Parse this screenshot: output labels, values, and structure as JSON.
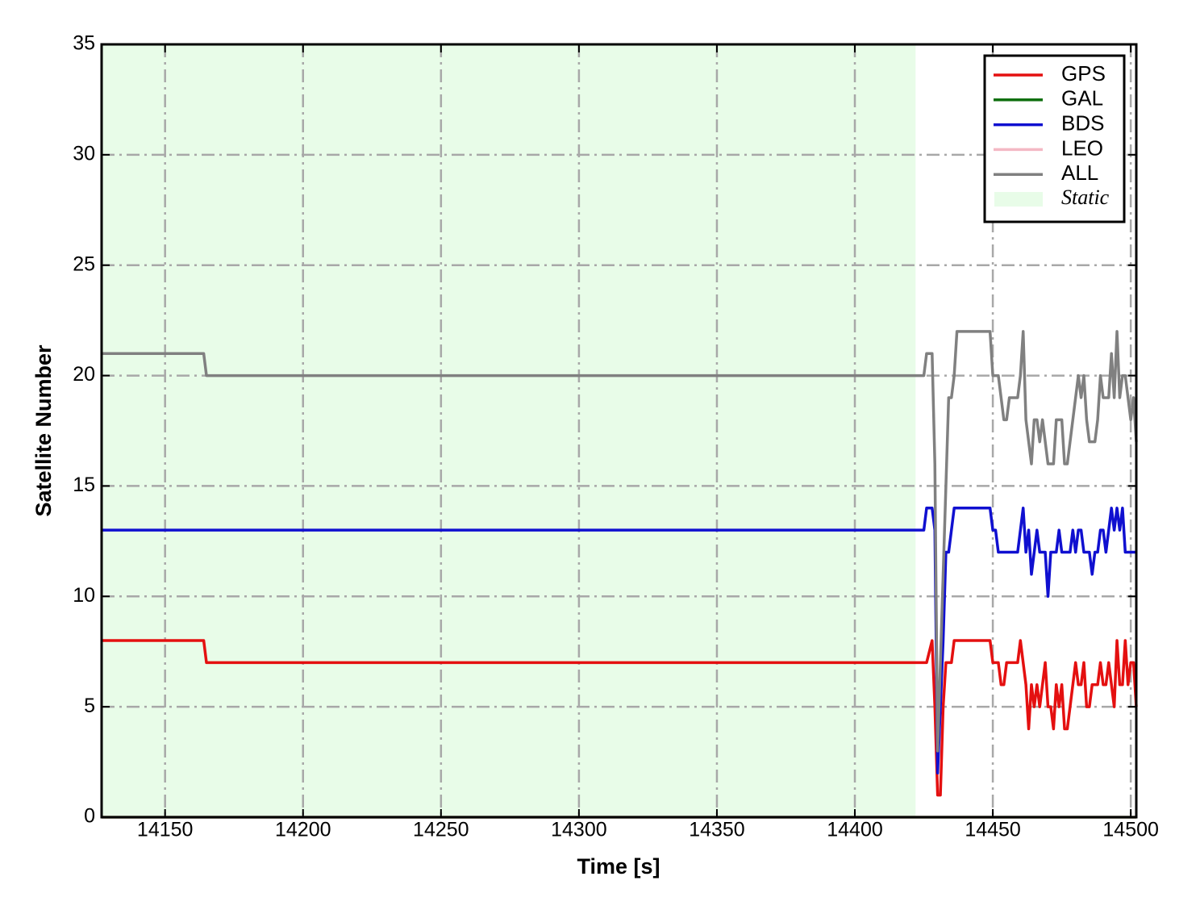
{
  "chart_data": {
    "type": "line",
    "x_label": "Time [s]",
    "y_label": "Satellite Number",
    "xlim": [
      14127,
      14502
    ],
    "ylim": [
      0,
      35
    ],
    "xticks": [
      14150,
      14200,
      14250,
      14300,
      14350,
      14400,
      14450,
      14500
    ],
    "yticks": [
      0,
      5,
      10,
      15,
      20,
      25,
      30,
      35
    ],
    "grid": true,
    "legend": "upper right",
    "shaded_regions": [
      {
        "label": "Static",
        "xlim": [
          14127,
          14422
        ],
        "color": "#e8fce8"
      }
    ],
    "x": [
      14127,
      14164,
      14165,
      14425,
      14426,
      14428,
      14429,
      14430,
      14431,
      14432,
      14433,
      14434,
      14435,
      14436,
      14437,
      14449,
      14450,
      14451,
      14452,
      14453,
      14454,
      14455,
      14456,
      14457,
      14459,
      14460,
      14461,
      14462,
      14463,
      14464,
      14465,
      14466,
      14467,
      14468,
      14469,
      14470,
      14471,
      14472,
      14473,
      14474,
      14475,
      14476,
      14477,
      14478,
      14479,
      14480,
      14481,
      14482,
      14483,
      14484,
      14485,
      14486,
      14487,
      14488,
      14489,
      14490,
      14491,
      14492,
      14493,
      14494,
      14495,
      14496,
      14497,
      14498,
      14499,
      14500,
      14501,
      14502
    ],
    "series": [
      {
        "name": "GPS",
        "color": "#e41010",
        "values": [
          8,
          8,
          7,
          7,
          7,
          8,
          5,
          1,
          1,
          5,
          7,
          7,
          7,
          8,
          8,
          8,
          7,
          7,
          7,
          6,
          6,
          7,
          7,
          7,
          7,
          8,
          7,
          6,
          4,
          6,
          5,
          6,
          5,
          6,
          7,
          5,
          5,
          4,
          6,
          5,
          6,
          4,
          4,
          5,
          6,
          7,
          6,
          6,
          7,
          5,
          5,
          6,
          6,
          6,
          7,
          6,
          6,
          7,
          6,
          5,
          8,
          6,
          6,
          8,
          6,
          7,
          7,
          5
        ]
      },
      {
        "name": "GAL",
        "color": "#107010",
        "values": [
          0,
          0,
          0,
          0,
          0,
          0,
          0,
          0,
          0,
          0,
          0,
          0,
          0,
          0,
          0,
          0,
          0,
          0,
          0,
          0,
          0,
          0,
          0,
          0,
          0,
          0,
          0,
          0,
          0,
          0,
          0,
          0,
          0,
          0,
          0,
          0,
          0,
          0,
          0,
          0,
          0,
          0,
          0,
          0,
          0,
          0,
          0,
          0,
          0,
          0,
          0,
          0,
          0,
          0,
          0,
          0,
          0,
          0,
          0,
          0,
          0,
          0,
          0,
          0,
          0,
          0,
          0,
          0
        ]
      },
      {
        "name": "BDS",
        "color": "#1010d0",
        "values": [
          13,
          13,
          13,
          13,
          14,
          14,
          13,
          2,
          5,
          8,
          12,
          12,
          13,
          14,
          14,
          14,
          13,
          13,
          12,
          12,
          12,
          12,
          12,
          12,
          12,
          13,
          14,
          12,
          13,
          11,
          12,
          13,
          12,
          12,
          12,
          10,
          12,
          12,
          12,
          13,
          12,
          12,
          12,
          12,
          13,
          12,
          13,
          13,
          12,
          12,
          12,
          11,
          12,
          12,
          13,
          13,
          12,
          13,
          14,
          13,
          14,
          13,
          14,
          12,
          12,
          12,
          12,
          12
        ]
      },
      {
        "name": "LEO",
        "color": "#f4b8c4",
        "values": [
          0,
          0,
          0,
          0,
          0,
          0,
          0,
          0,
          0,
          0,
          0,
          0,
          0,
          0,
          0,
          0,
          0,
          0,
          0,
          0,
          0,
          0,
          0,
          0,
          0,
          0,
          0,
          0,
          0,
          0,
          0,
          0,
          0,
          0,
          0,
          0,
          0,
          0,
          0,
          0,
          0,
          0,
          0,
          0,
          0,
          0,
          0,
          0,
          0,
          0,
          0,
          0,
          0,
          0,
          0,
          0,
          0,
          0,
          0,
          0,
          0,
          0,
          0,
          0,
          0,
          0,
          0,
          0
        ]
      },
      {
        "name": "ALL",
        "color": "#808080",
        "values": [
          21,
          21,
          20,
          20,
          21,
          21,
          16,
          3,
          7,
          11,
          15,
          19,
          19,
          20,
          22,
          22,
          20,
          20,
          20,
          19,
          18,
          18,
          19,
          19,
          19,
          20,
          22,
          18,
          17,
          16,
          18,
          18,
          17,
          18,
          17,
          16,
          16,
          16,
          18,
          18,
          18,
          16,
          16,
          17,
          18,
          19,
          20,
          19,
          20,
          18,
          17,
          17,
          17,
          18,
          20,
          19,
          19,
          19,
          21,
          19,
          22,
          19,
          20,
          20,
          19,
          18,
          19,
          17
        ]
      }
    ]
  }
}
